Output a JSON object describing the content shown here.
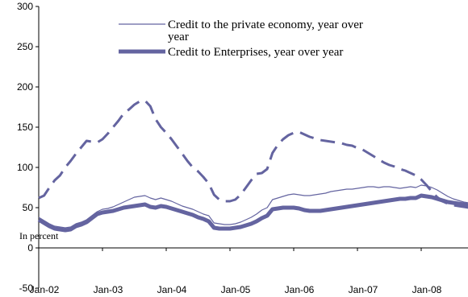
{
  "chart_data": {
    "type": "line",
    "title": "",
    "xlabel": "",
    "ylabel": "",
    "ylim": [
      -50,
      300
    ],
    "yticks": [
      -50,
      0,
      50,
      100,
      150,
      200,
      250,
      300
    ],
    "xticks": [
      "Jan-02",
      "Jan-03",
      "Jan-04",
      "Jan-05",
      "Jan-06",
      "Jan-07",
      "Jan-08"
    ],
    "grid": false,
    "legend_position": "top-right",
    "annotation": "In percent",
    "x": [
      "Jan-02",
      "Feb-02",
      "Mar-02",
      "Apr-02",
      "May-02",
      "Jun-02",
      "Jul-02",
      "Aug-02",
      "Sep-02",
      "Oct-02",
      "Nov-02",
      "Dec-02",
      "Jan-03",
      "Feb-03",
      "Mar-03",
      "Apr-03",
      "May-03",
      "Jun-03",
      "Jul-03",
      "Aug-03",
      "Sep-03",
      "Oct-03",
      "Nov-03",
      "Dec-03",
      "Jan-04",
      "Feb-04",
      "Mar-04",
      "Apr-04",
      "May-04",
      "Jun-04",
      "Jul-04",
      "Aug-04",
      "Sep-04",
      "Oct-04",
      "Nov-04",
      "Dec-04",
      "Jan-05",
      "Feb-05",
      "Mar-05",
      "Apr-05",
      "May-05",
      "Jun-05",
      "Jul-05",
      "Aug-05",
      "Sep-05",
      "Oct-05",
      "Nov-05",
      "Dec-05",
      "Jan-06",
      "Feb-06",
      "Mar-06",
      "Apr-06",
      "May-06",
      "Jun-06",
      "Jul-06",
      "Aug-06",
      "Sep-06",
      "Oct-06",
      "Nov-06",
      "Dec-06",
      "Jan-07",
      "Feb-07",
      "Mar-07",
      "Apr-07",
      "May-07",
      "Jun-07",
      "Jul-07",
      "Aug-07",
      "Sep-07",
      "Oct-07",
      "Nov-07",
      "Dec-07",
      "Jan-08",
      "Feb-08",
      "Mar-08",
      "Apr-08",
      "May-08",
      "Jun-08",
      "Jul-08",
      "Aug-08",
      "Sep-08",
      "Oct-08",
      "Nov-08",
      "Dec-08"
    ],
    "series": [
      {
        "name": "",
        "style": "dashed",
        "color": "#6464a0",
        "values": [
          62,
          65,
          75,
          84,
          90,
          100,
          108,
          117,
          125,
          133,
          132,
          131,
          135,
          142,
          150,
          158,
          167,
          172,
          178,
          182,
          183,
          176,
          160,
          150,
          143,
          135,
          126,
          117,
          108,
          100,
          95,
          88,
          80,
          66,
          60,
          58,
          58,
          60,
          66,
          75,
          84,
          92,
          93,
          98,
          118,
          128,
          135,
          140,
          143,
          144,
          141,
          138,
          136,
          134,
          133,
          132,
          131,
          130,
          128,
          127,
          124,
          122,
          118,
          114,
          110,
          106,
          103,
          101,
          98,
          96,
          93,
          90,
          85,
          78,
          70,
          63,
          58,
          55,
          53,
          52,
          51,
          50,
          49,
          48
        ]
      },
      {
        "name": "Credit to the private economy, year over year",
        "style": "thin",
        "color": "#6464a0",
        "values": [
          38,
          34,
          30,
          27,
          26,
          25,
          26,
          30,
          32,
          35,
          40,
          45,
          48,
          49,
          51,
          54,
          57,
          60,
          63,
          64,
          65,
          62,
          60,
          62,
          60,
          58,
          55,
          52,
          50,
          48,
          45,
          42,
          40,
          31,
          30,
          29,
          29,
          30,
          32,
          35,
          38,
          42,
          47,
          50,
          60,
          62,
          64,
          66,
          67,
          66,
          65,
          65,
          66,
          67,
          68,
          70,
          71,
          72,
          73,
          73,
          74,
          75,
          76,
          76,
          75,
          76,
          76,
          75,
          74,
          75,
          76,
          75,
          78,
          77,
          75,
          72,
          68,
          64,
          61,
          59,
          57,
          56,
          55,
          54
        ]
      },
      {
        "name": "Credit to Enterprises, year over year",
        "style": "thick",
        "color": "#6464a0",
        "values": [
          35,
          31,
          27,
          24,
          23,
          22,
          23,
          27,
          29,
          32,
          37,
          42,
          44,
          45,
          46,
          48,
          50,
          51,
          52,
          53,
          54,
          51,
          50,
          52,
          51,
          49,
          47,
          45,
          43,
          41,
          38,
          36,
          33,
          25,
          24,
          24,
          24,
          25,
          26,
          28,
          30,
          33,
          37,
          40,
          48,
          49,
          50,
          50,
          50,
          49,
          47,
          46,
          46,
          46,
          47,
          48,
          49,
          50,
          51,
          52,
          53,
          54,
          55,
          56,
          57,
          58,
          59,
          60,
          61,
          61,
          62,
          62,
          65,
          64,
          63,
          61,
          59,
          57,
          56,
          55,
          54,
          53,
          52,
          51
        ]
      }
    ]
  }
}
